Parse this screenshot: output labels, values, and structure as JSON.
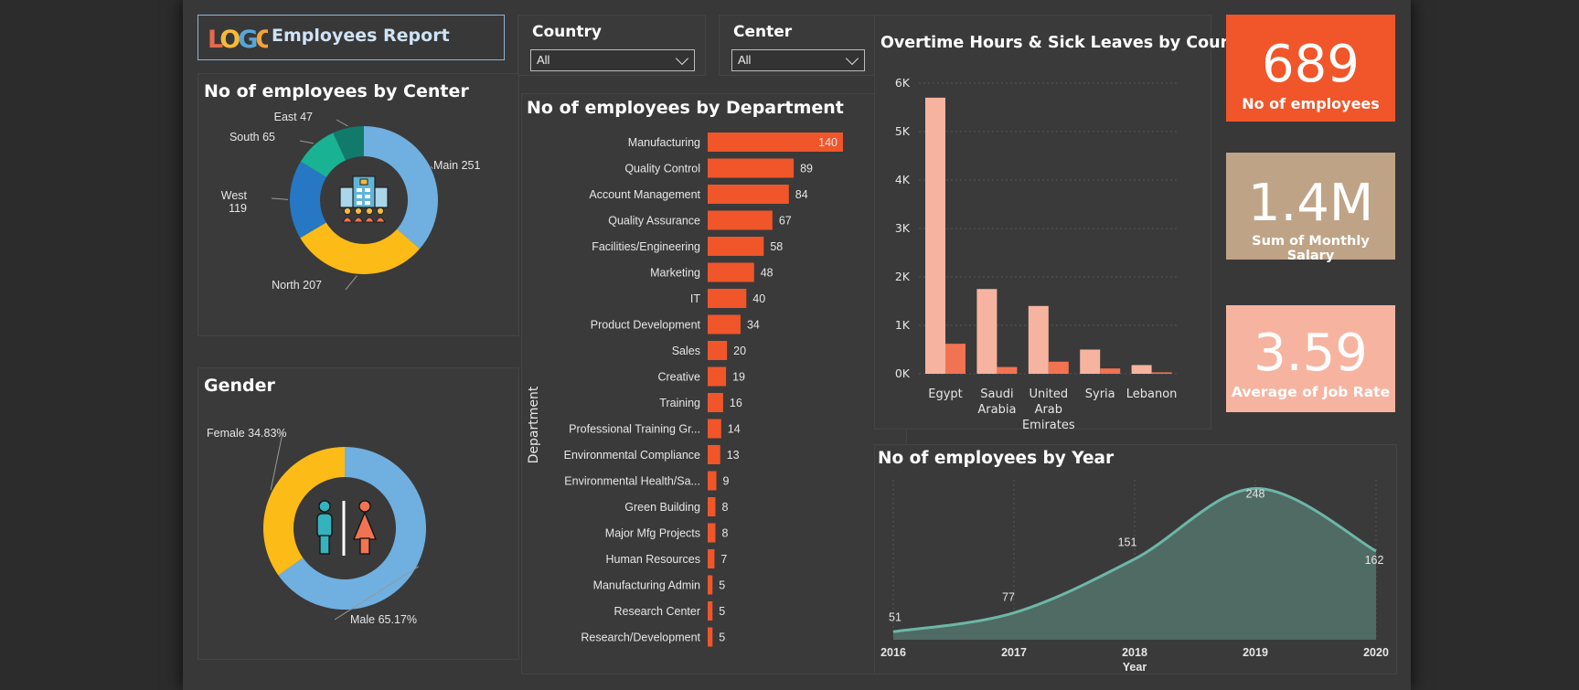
{
  "header": {
    "logo_text": "LOGO",
    "report_title": "Employees Report"
  },
  "slicers": [
    {
      "label": "Country",
      "value": "All"
    },
    {
      "label": "Center",
      "value": "All"
    }
  ],
  "cards": [
    {
      "value": "689",
      "caption": "No of employees",
      "color": "#f0562a"
    },
    {
      "value": "1.4M",
      "caption": "Sum of Monthly Salary",
      "color": "#bfa386"
    },
    {
      "value": "3.59",
      "caption": "Average of Job Rate",
      "color": "#f6b4a0"
    }
  ],
  "chart_data": [
    {
      "type": "pie",
      "title": "No of employees by Center",
      "variant": "donut",
      "center_icon": "building-people-icon",
      "slices": [
        {
          "label": "Main",
          "value": 251,
          "display": "Main 251",
          "color": "#6fb0e0"
        },
        {
          "label": "North",
          "value": 207,
          "display": "North 207",
          "color": "#fdbb17"
        },
        {
          "label": "West",
          "value": 119,
          "display_lines": [
            "West",
            "119"
          ],
          "color": "#2678c4"
        },
        {
          "label": "South",
          "value": 65,
          "display": "South 65",
          "color": "#19b394"
        },
        {
          "label": "East",
          "value": 47,
          "display": "East 47",
          "color": "#127a6b"
        }
      ]
    },
    {
      "type": "pie",
      "title": "Gender",
      "variant": "donut",
      "center_icon": "male-female-icon",
      "slices": [
        {
          "label": "Male",
          "value": 65.17,
          "display": "Male 65.17%",
          "color": "#6fb0e0"
        },
        {
          "label": "Female",
          "value": 34.83,
          "display": "Female 34.83%",
          "color": "#fdbb17"
        }
      ]
    },
    {
      "type": "bar",
      "orientation": "horizontal",
      "title": "No of employees by Department",
      "ylabel": "Department",
      "color": "#f0562a",
      "categories": [
        "Manufacturing",
        "Quality Control",
        "Account Management",
        "Quality Assurance",
        "Facilities/Engineering",
        "Marketing",
        "IT",
        "Product Development",
        "Sales",
        "Creative",
        "Training",
        "Professional Training Gr...",
        "Environmental Compliance",
        "Environmental Health/Sa...",
        "Green Building",
        "Major Mfg Projects",
        "Human Resources",
        "Manufacturing Admin",
        "Research Center",
        "Research/Development"
      ],
      "values": [
        140,
        89,
        84,
        67,
        58,
        48,
        40,
        34,
        20,
        19,
        16,
        14,
        13,
        9,
        8,
        8,
        7,
        5,
        5,
        5
      ]
    },
    {
      "type": "bar",
      "title": "Overtime Hours & Sick Leaves by Country",
      "categories": [
        [
          "Egypt"
        ],
        [
          "Saudi",
          "Arabia"
        ],
        [
          "United",
          "Arab",
          "Emirates"
        ],
        [
          "Syria"
        ],
        [
          "Lebanon"
        ]
      ],
      "series": [
        {
          "values": [
            5700,
            1750,
            1400,
            500,
            180
          ],
          "color": "#f6b4a0"
        },
        {
          "values": [
            620,
            140,
            250,
            110,
            30
          ],
          "color": "#f27352"
        }
      ],
      "ylim": [
        0,
        6000
      ],
      "yticks": [
        0,
        1000,
        2000,
        3000,
        4000,
        5000,
        6000
      ],
      "ytick_labels": [
        "0K",
        "1K",
        "2K",
        "3K",
        "4K",
        "5K",
        "6K"
      ],
      "grid": true
    },
    {
      "type": "area",
      "title": "No of employees by Year",
      "xlabel": "Year",
      "x": [
        2016,
        2017,
        2018,
        2019,
        2020
      ],
      "values": [
        51,
        77,
        151,
        248,
        162
      ],
      "ylim": [
        40,
        260
      ],
      "color": "#6cb7a8",
      "fill": "#4f6b63"
    }
  ]
}
